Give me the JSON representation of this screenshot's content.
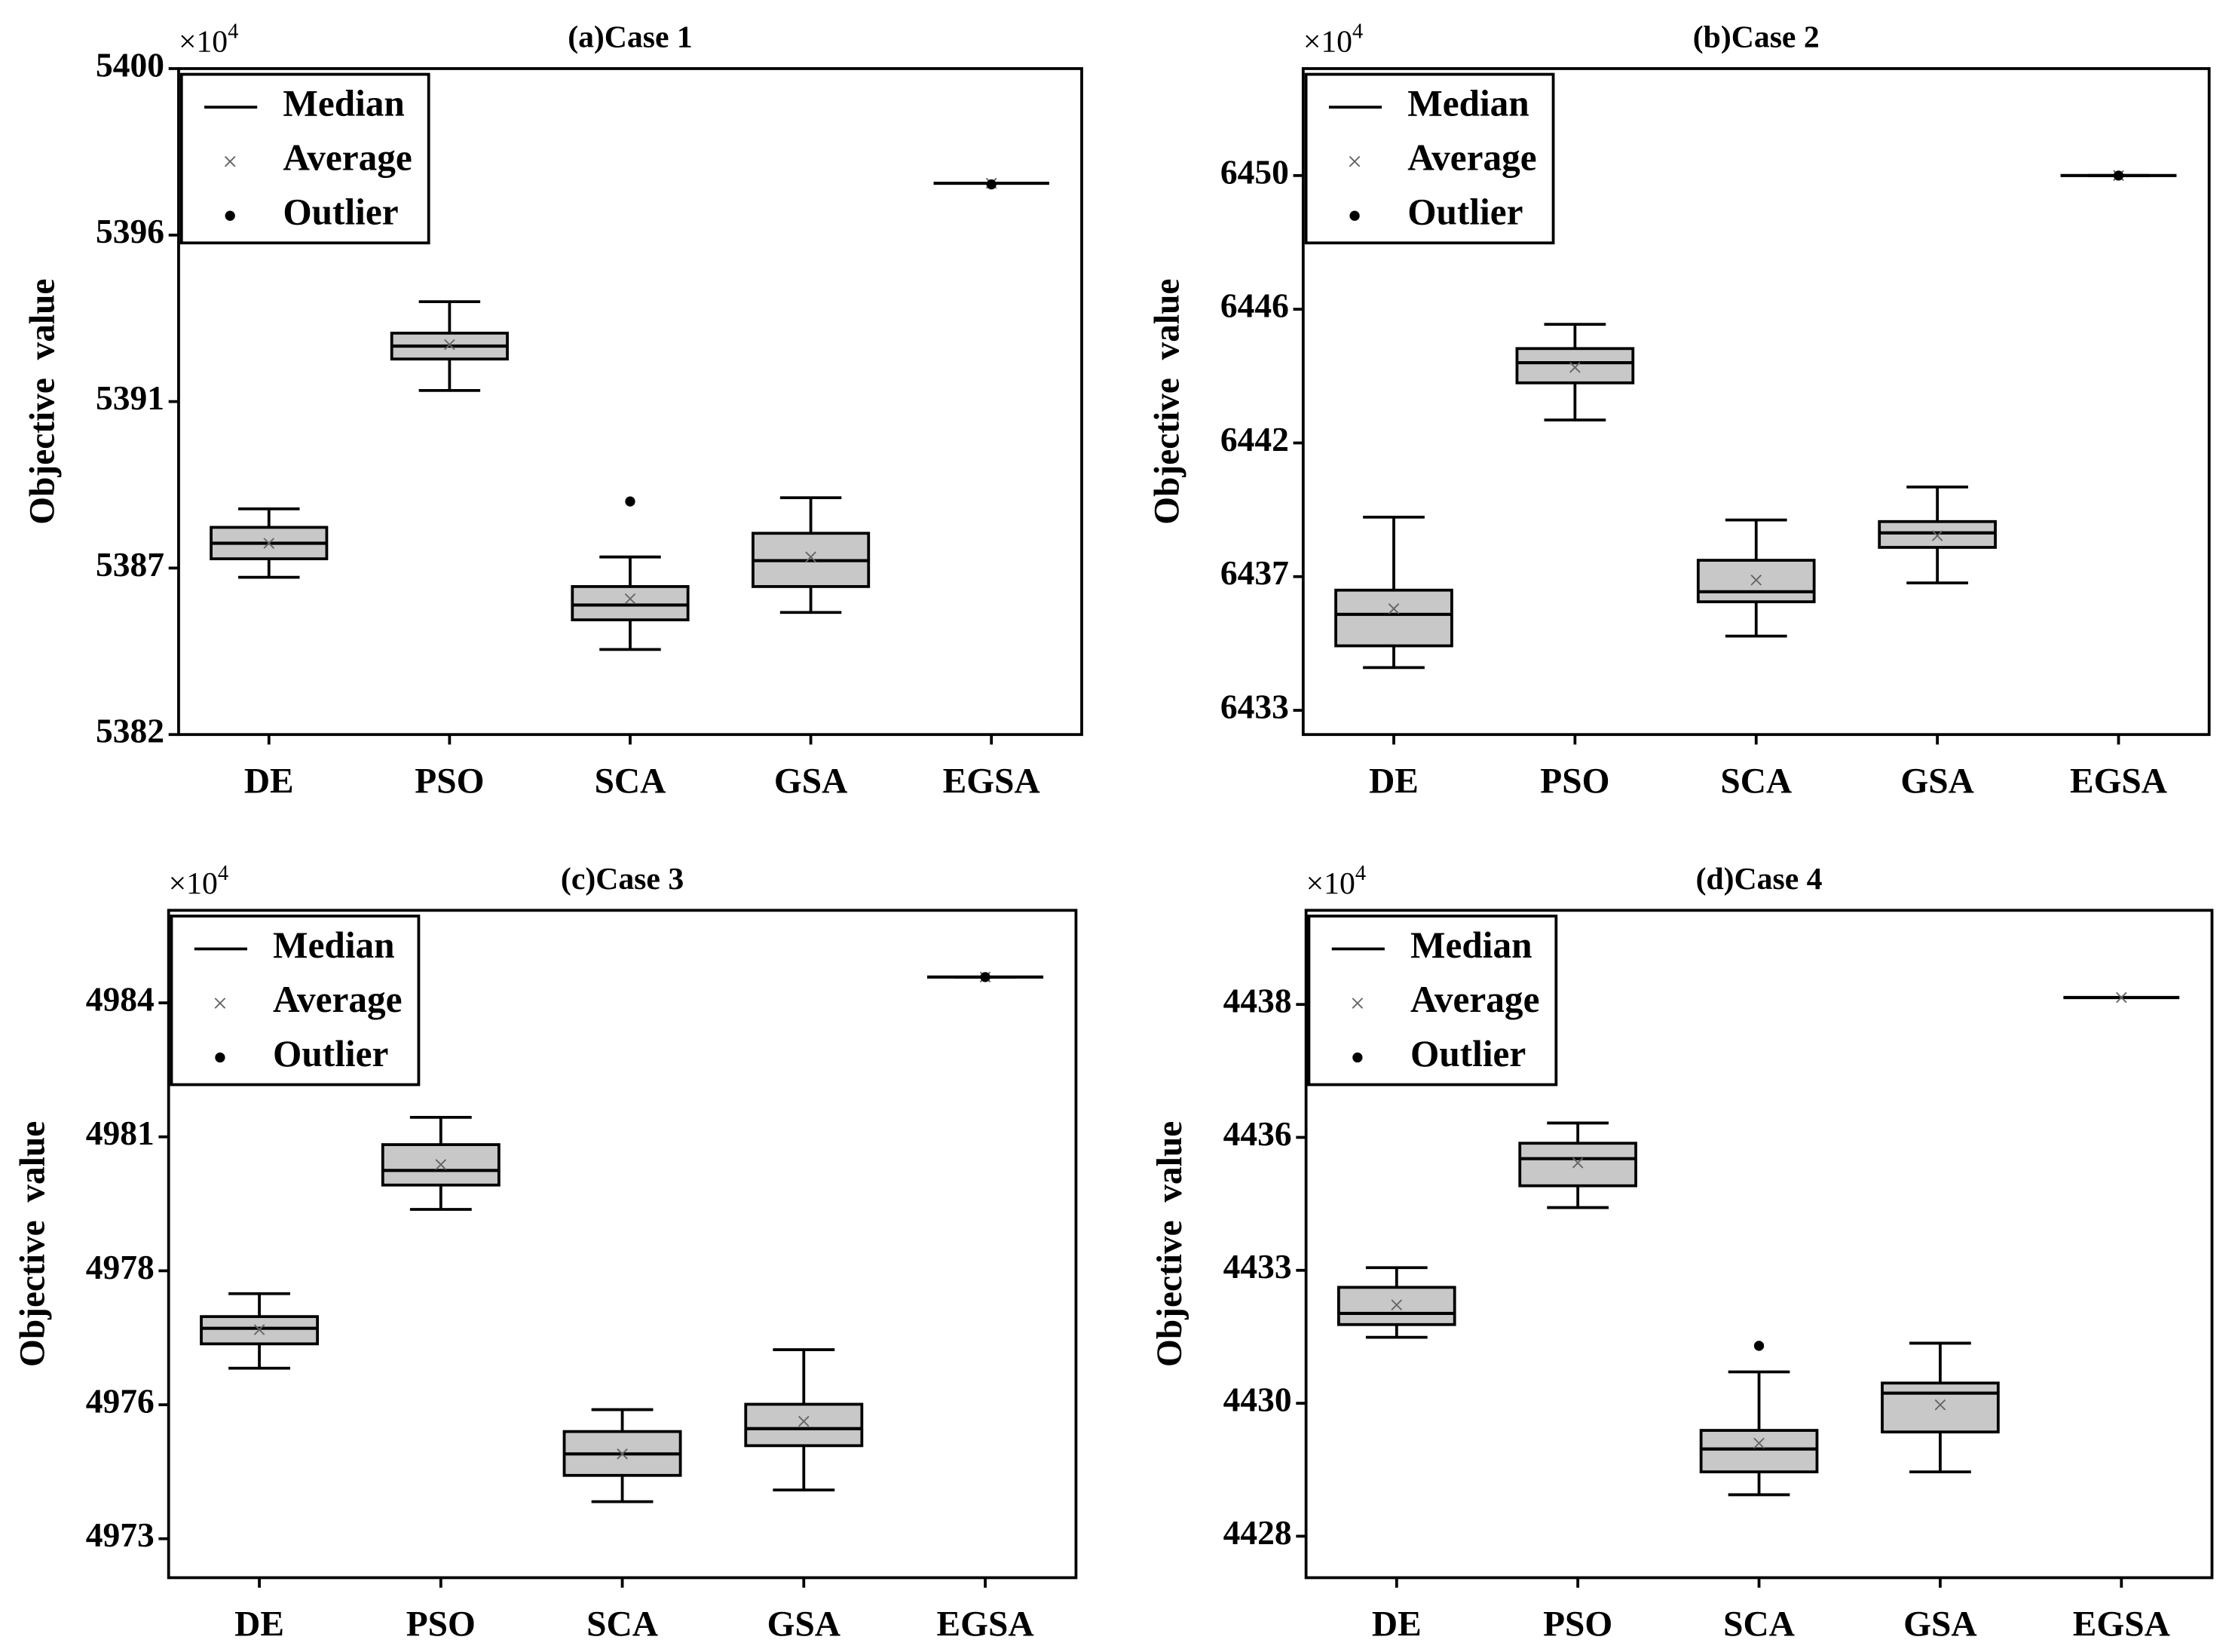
{
  "chart_data": [
    {
      "type": "box",
      "title": "(a)Case 1",
      "ylabel": "Objective  value",
      "y_multiplier": {
        "base": "×10",
        "exponent": "4"
      },
      "legend": [
        "Median",
        "Average",
        "Outlier"
      ],
      "categories": [
        "DE",
        "PSO",
        "SCA",
        "GSA",
        "EGSA"
      ],
      "ylim": [
        5382,
        5400
      ],
      "yticks": [
        5382,
        {
          "value": 5386.5,
          "label": "5387"
        },
        5391,
        {
          "value": 5395.5,
          "label": "5396"
        },
        5400
      ],
      "box_color": "#c8c8c8",
      "boxes": [
        {
          "min": 5386.25,
          "q1": 5386.75,
          "median": 5387.17,
          "q3": 5387.6,
          "max": 5388.1,
          "mean": 5387.17,
          "outliers": []
        },
        {
          "min": 5391.3,
          "q1": 5392.15,
          "median": 5392.5,
          "q3": 5392.85,
          "max": 5393.7,
          "mean": 5392.54,
          "outliers": []
        },
        {
          "min": 5384.3,
          "q1": 5385.1,
          "median": 5385.5,
          "q3": 5386.0,
          "max": 5386.8,
          "mean": 5385.67,
          "outliers": [
            5388.3
          ]
        },
        {
          "min": 5385.3,
          "q1": 5386.0,
          "median": 5386.7,
          "q3": 5387.44,
          "max": 5388.4,
          "mean": 5386.8,
          "outliers": []
        },
        {
          "min": 5396.9,
          "q1": 5396.9,
          "median": 5396.9,
          "q3": 5396.9,
          "max": 5396.9,
          "mean": 5396.9,
          "outliers": [
            5396.87
          ]
        }
      ]
    },
    {
      "type": "box",
      "title": "(b)Case 2",
      "ylabel": "Objective  value",
      "y_multiplier": {
        "base": "×10",
        "exponent": "4"
      },
      "legend": [
        "Median",
        "Average",
        "Outlier"
      ],
      "categories": [
        "DE",
        "PSO",
        "SCA",
        "GSA",
        "EGSA"
      ],
      "ylim": [
        6432.23,
        6453.4
      ],
      "yticks": [
        6433,
        {
          "value": 6437.25,
          "label": "6437"
        },
        {
          "value": 6441.5,
          "label": "6442"
        },
        {
          "value": 6445.75,
          "label": "6446"
        },
        6450
      ],
      "box_color": "#c8c8c8",
      "boxes": [
        {
          "min": 6434.36,
          "q1": 6435.05,
          "median": 6436.05,
          "q3": 6436.82,
          "max": 6439.14,
          "mean": 6436.23,
          "outliers": []
        },
        {
          "min": 6442.23,
          "q1": 6443.41,
          "median": 6444.05,
          "q3": 6444.5,
          "max": 6445.27,
          "mean": 6443.9,
          "outliers": []
        },
        {
          "min": 6435.36,
          "q1": 6436.45,
          "median": 6436.77,
          "q3": 6437.77,
          "max": 6439.05,
          "mean": 6437.14,
          "outliers": []
        },
        {
          "min": 6437.05,
          "q1": 6438.18,
          "median": 6438.64,
          "q3": 6439.0,
          "max": 6440.1,
          "mean": 6438.55,
          "outliers": []
        },
        {
          "min": 6450.0,
          "q1": 6450.0,
          "median": 6450.0,
          "q3": 6450.0,
          "max": 6450.0,
          "mean": 6450.0,
          "outliers": [
            6450.0
          ]
        }
      ]
    },
    {
      "type": "box",
      "title": "(c)Case 3",
      "ylabel": "Objective  value",
      "y_multiplier": {
        "base": "×10",
        "exponent": "4"
      },
      "legend": [
        "Median",
        "Average",
        "Outlier"
      ],
      "categories": [
        "DE",
        "PSO",
        "SCA",
        "GSA",
        "EGSA"
      ],
      "ylim": [
        4972.2,
        4985.9
      ],
      "yticks": [
        4973,
        {
          "value": 4975.75,
          "label": "4976"
        },
        {
          "value": 4978.5,
          "label": "4978"
        },
        {
          "value": 4981.25,
          "label": "4981"
        },
        4984
      ],
      "box_color": "#c8c8c8",
      "boxes": [
        {
          "min": 4976.5,
          "q1": 4977.0,
          "median": 4977.32,
          "q3": 4977.56,
          "max": 4978.03,
          "mean": 4977.29,
          "outliers": []
        },
        {
          "min": 4979.76,
          "q1": 4980.26,
          "median": 4980.56,
          "q3": 4981.09,
          "max": 4981.65,
          "mean": 4980.68,
          "outliers": []
        },
        {
          "min": 4973.76,
          "q1": 4974.3,
          "median": 4974.74,
          "q3": 4975.2,
          "max": 4975.65,
          "mean": 4974.74,
          "outliers": []
        },
        {
          "min": 4974.0,
          "q1": 4974.91,
          "median": 4975.26,
          "q3": 4975.76,
          "max": 4976.88,
          "mean": 4975.41,
          "outliers": []
        },
        {
          "min": 4984.53,
          "q1": 4984.53,
          "median": 4984.53,
          "q3": 4984.53,
          "max": 4984.53,
          "mean": 4984.53,
          "outliers": [
            4984.53
          ]
        }
      ]
    },
    {
      "type": "box",
      "title": "(d)Case 4",
      "ylabel": "Objective  value",
      "y_multiplier": {
        "base": "×10",
        "exponent": "4"
      },
      "legend": [
        "Median",
        "Average",
        "Outlier"
      ],
      "categories": [
        "DE",
        "PSO",
        "SCA",
        "GSA",
        "EGSA"
      ],
      "ylim": [
        4427.22,
        4439.77
      ],
      "yticks": [
        4428,
        {
          "value": 4430.5,
          "label": "4430"
        },
        4433,
        {
          "value": 4435.5,
          "label": "4436"
        },
        4438
      ],
      "box_color": "#c8c8c8",
      "boxes": [
        {
          "min": 4431.74,
          "q1": 4431.98,
          "median": 4432.19,
          "q3": 4432.68,
          "max": 4433.05,
          "mean": 4432.35,
          "outliers": []
        },
        {
          "min": 4434.18,
          "q1": 4434.59,
          "median": 4435.1,
          "q3": 4435.39,
          "max": 4435.77,
          "mean": 4435.02,
          "outliers": []
        },
        {
          "min": 4428.78,
          "q1": 4429.21,
          "median": 4429.64,
          "q3": 4429.99,
          "max": 4431.09,
          "mean": 4429.75,
          "outliers": [
            4431.58
          ]
        },
        {
          "min": 4429.21,
          "q1": 4429.96,
          "median": 4430.69,
          "q3": 4430.88,
          "max": 4431.63,
          "mean": 4430.47,
          "outliers": []
        },
        {
          "min": 4438.13,
          "q1": 4438.13,
          "median": 4438.13,
          "q3": 4438.13,
          "max": 4438.13,
          "mean": 4438.13,
          "outliers": []
        }
      ]
    }
  ]
}
